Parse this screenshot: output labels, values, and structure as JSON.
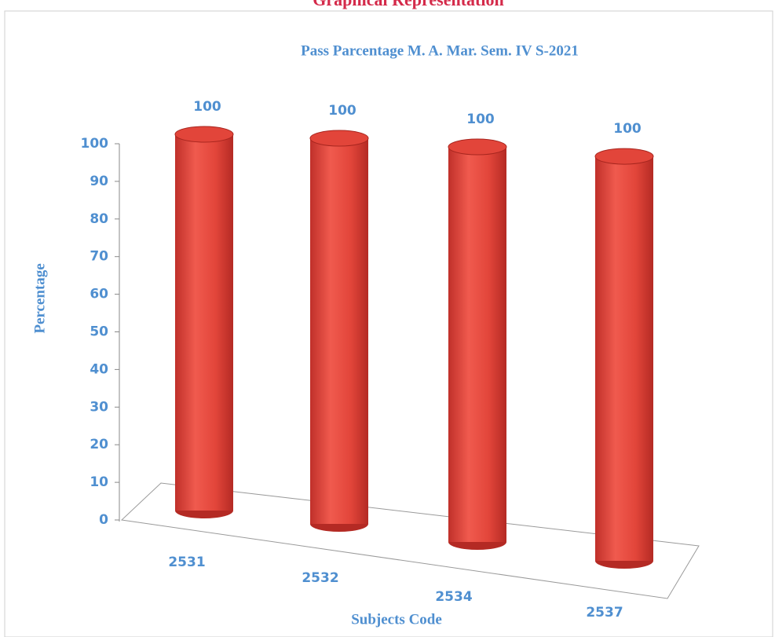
{
  "header": {
    "title": "Graphical Representation"
  },
  "chart_data": {
    "type": "bar",
    "title": "Pass Parcentage M. A. Mar. Sem. IV S-2021",
    "x_label": "Subjects Code",
    "y_label": "Percentage",
    "categories": [
      "2531",
      "2532",
      "2534",
      "2537"
    ],
    "values": [
      100,
      100,
      100,
      100
    ],
    "color": "#e2453a",
    "ylim": [
      0,
      100
    ],
    "yticks": [
      0,
      10,
      20,
      30,
      40,
      50,
      60,
      70,
      80,
      90,
      100
    ],
    "grid": false
  }
}
